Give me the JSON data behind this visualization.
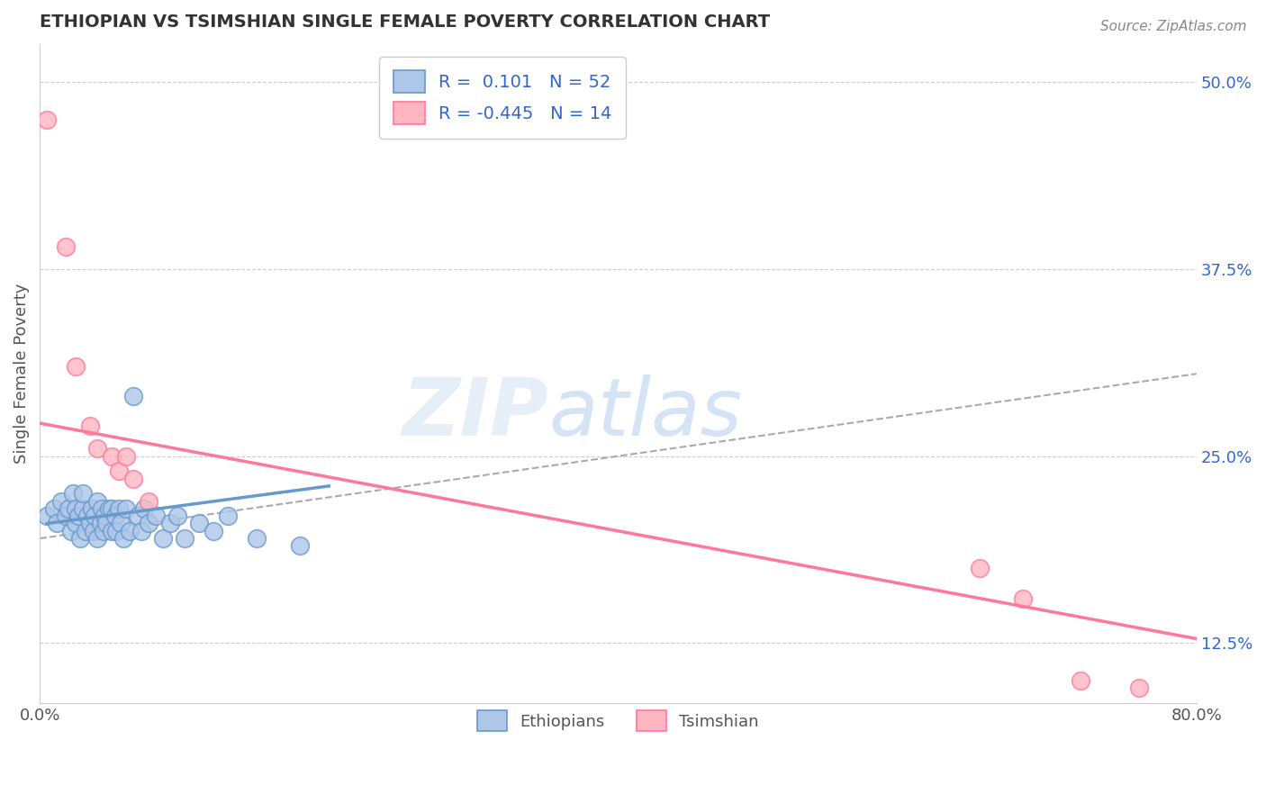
{
  "title": "ETHIOPIAN VS TSIMSHIAN SINGLE FEMALE POVERTY CORRELATION CHART",
  "source": "Source: ZipAtlas.com",
  "ylabel": "Single Female Poverty",
  "xlim": [
    0.0,
    0.8
  ],
  "ylim": [
    0.085,
    0.525
  ],
  "xticks": [
    0.0,
    0.2,
    0.4,
    0.6,
    0.8
  ],
  "xticklabels": [
    "0.0%",
    "",
    "",
    "",
    "80.0%"
  ],
  "ytick_labels_right": [
    "50.0%",
    "37.5%",
    "25.0%",
    "12.5%"
  ],
  "ytick_values_right": [
    0.5,
    0.375,
    0.25,
    0.125
  ],
  "watermark_text": "ZIP",
  "watermark_text2": "atlas",
  "blue_color": "#6699CC",
  "blue_fill": "#AEC6E8",
  "pink_color": "#FF7799",
  "pink_fill": "#FFB6C1",
  "blue_scatter_x": [
    0.005,
    0.01,
    0.012,
    0.015,
    0.018,
    0.02,
    0.022,
    0.023,
    0.025,
    0.025,
    0.027,
    0.028,
    0.03,
    0.03,
    0.032,
    0.033,
    0.035,
    0.036,
    0.037,
    0.038,
    0.04,
    0.04,
    0.042,
    0.043,
    0.044,
    0.045,
    0.046,
    0.048,
    0.05,
    0.05,
    0.052,
    0.053,
    0.055,
    0.056,
    0.058,
    0.06,
    0.062,
    0.065,
    0.068,
    0.07,
    0.072,
    0.075,
    0.08,
    0.085,
    0.09,
    0.095,
    0.1,
    0.11,
    0.12,
    0.13,
    0.15,
    0.18
  ],
  "blue_scatter_y": [
    0.21,
    0.215,
    0.205,
    0.22,
    0.21,
    0.215,
    0.2,
    0.225,
    0.205,
    0.215,
    0.21,
    0.195,
    0.215,
    0.225,
    0.2,
    0.21,
    0.205,
    0.215,
    0.2,
    0.21,
    0.195,
    0.22,
    0.205,
    0.215,
    0.2,
    0.21,
    0.205,
    0.215,
    0.2,
    0.215,
    0.21,
    0.2,
    0.215,
    0.205,
    0.195,
    0.215,
    0.2,
    0.29,
    0.21,
    0.2,
    0.215,
    0.205,
    0.21,
    0.195,
    0.205,
    0.21,
    0.195,
    0.205,
    0.2,
    0.21,
    0.195,
    0.19
  ],
  "pink_scatter_x": [
    0.005,
    0.018,
    0.025,
    0.035,
    0.04,
    0.05,
    0.055,
    0.06,
    0.065,
    0.075,
    0.65,
    0.68,
    0.72,
    0.76
  ],
  "pink_scatter_y": [
    0.475,
    0.39,
    0.31,
    0.27,
    0.255,
    0.25,
    0.24,
    0.25,
    0.235,
    0.22,
    0.175,
    0.155,
    0.1,
    0.095
  ],
  "blue_trend_x": [
    0.005,
    0.2
  ],
  "blue_trend_y": [
    0.205,
    0.23
  ],
  "pink_trend_x": [
    0.0,
    0.8
  ],
  "pink_trend_y": [
    0.272,
    0.128
  ],
  "gray_trend_x": [
    0.0,
    0.8
  ],
  "gray_trend_y": [
    0.195,
    0.305
  ],
  "background_color": "#ffffff",
  "grid_color": "#cccccc",
  "title_color": "#333333",
  "source_color": "#888888",
  "right_tick_color": "#3366CC"
}
